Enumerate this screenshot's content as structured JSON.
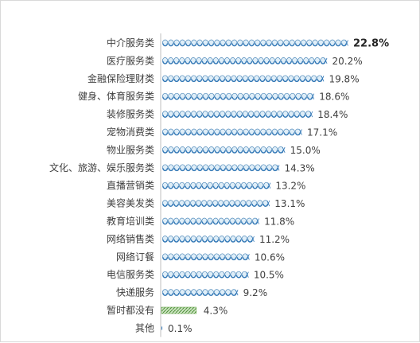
{
  "chart_data": {
    "type": "bar",
    "orientation": "horizontal",
    "categories": [
      "中介服务类",
      "医疗服务类",
      "金融保险理财类",
      "健身、体育服务类",
      "装修服务类",
      "宠物消费类",
      "物业服务类",
      "文化、旅游、娱乐服务类",
      "直播营销类",
      "美容美发类",
      "教育培训类",
      "网络销售类",
      "网络订餐",
      "电信服务类",
      "快递服务",
      "暂时都没有",
      "其他"
    ],
    "values": [
      22.8,
      20.2,
      19.8,
      18.6,
      18.4,
      17.1,
      15.0,
      14.3,
      13.2,
      13.1,
      11.8,
      11.2,
      10.6,
      10.5,
      9.2,
      4.3,
      0.1
    ],
    "value_labels": [
      "22.8%",
      "20.2%",
      "19.8%",
      "18.6%",
      "18.4%",
      "17.1%",
      "15.0%",
      "14.3%",
      "13.2%",
      "13.1%",
      "11.8%",
      "11.2%",
      "10.6%",
      "10.5%",
      "9.2%",
      "4.3%",
      "0.1%"
    ],
    "highlight_index": 0,
    "unit": "%",
    "xlim": [
      0,
      25
    ],
    "grid": false,
    "colors": {
      "bead_fill": "#dfeef8",
      "bead_stroke": "#4a86b8",
      "bead_accent": "#2e75b6",
      "none_bar": "#6aa84f",
      "axis": "#bfbfbf",
      "label": "#404040"
    }
  }
}
